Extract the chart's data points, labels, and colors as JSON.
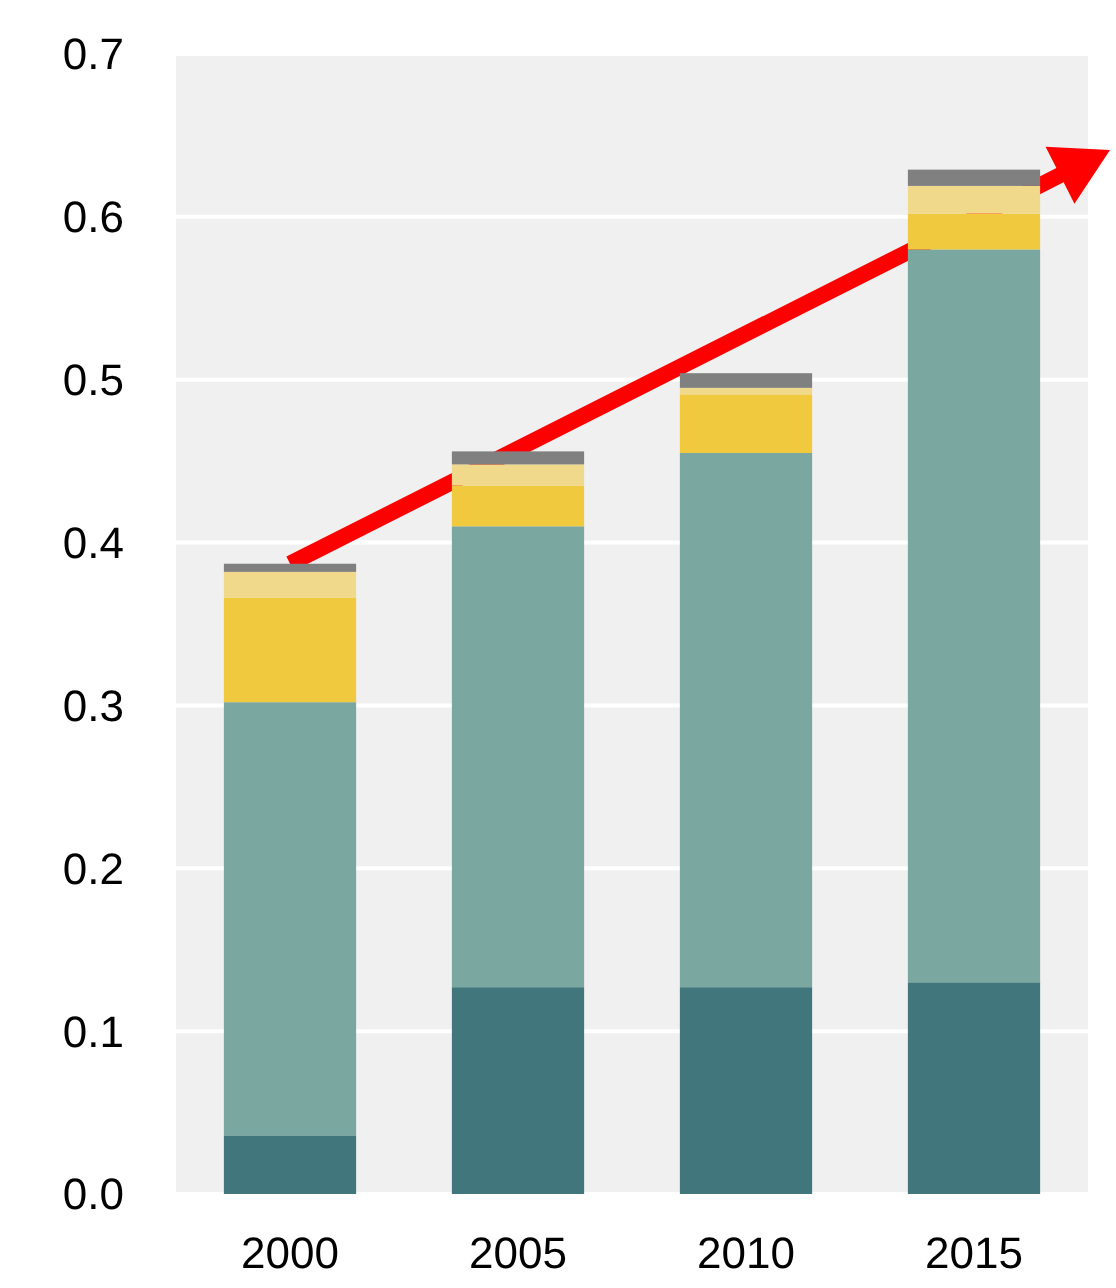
{
  "chart_data": {
    "type": "bar",
    "stacked": true,
    "categories": [
      "2000",
      "2005",
      "2010",
      "2015"
    ],
    "series": [
      {
        "color": "#41777c",
        "values": [
          0.036,
          0.127,
          0.127,
          0.13
        ]
      },
      {
        "color": "#7aa79f",
        "values": [
          0.266,
          0.283,
          0.328,
          0.45
        ]
      },
      {
        "color": "#f0c93f",
        "values": [
          0.064,
          0.025,
          0.036,
          0.022
        ]
      },
      {
        "color": "#f0d98a",
        "values": [
          0.016,
          0.013,
          0.004,
          0.017
        ]
      },
      {
        "color": "#808080",
        "values": [
          0.005,
          0.008,
          0.009,
          0.01
        ]
      }
    ],
    "ylim": [
      0,
      0.7
    ],
    "yticks": [
      {
        "value": 0,
        "label": "0.0"
      },
      0.1,
      0.2,
      0.3,
      0.4,
      0.5,
      0.6,
      0.7
    ],
    "grid": "y"
  }
}
